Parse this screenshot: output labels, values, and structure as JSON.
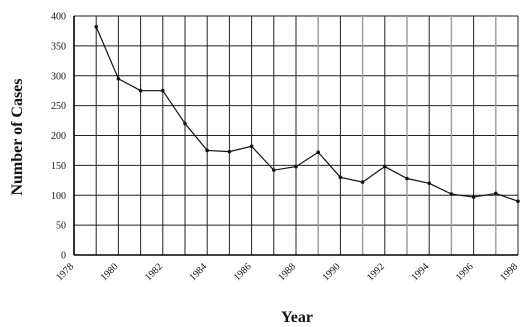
{
  "chart_data": {
    "type": "line",
    "title": "",
    "xlabel": "Year",
    "ylabel": "Number of Cases",
    "xlim": [
      1978,
      1998
    ],
    "ylim": [
      0,
      400
    ],
    "x_ticks": [
      1978,
      1980,
      1982,
      1984,
      1986,
      1988,
      1990,
      1992,
      1994,
      1996,
      1998
    ],
    "y_ticks": [
      0,
      50,
      100,
      150,
      200,
      250,
      300,
      350,
      400
    ],
    "grid": true,
    "series": [
      {
        "x": [
          1979,
          1980,
          1981,
          1982,
          1983,
          1984,
          1985,
          1986,
          1987,
          1988,
          1989,
          1990,
          1991,
          1992,
          1993,
          1994,
          1995,
          1996,
          1997,
          1998
        ],
        "values": [
          382,
          295,
          275,
          275,
          220,
          175,
          173,
          182,
          142,
          148,
          172,
          130,
          122,
          148,
          128,
          120,
          102,
          97,
          103,
          90
        ],
        "marker": "dot",
        "color": "#111111"
      }
    ]
  }
}
